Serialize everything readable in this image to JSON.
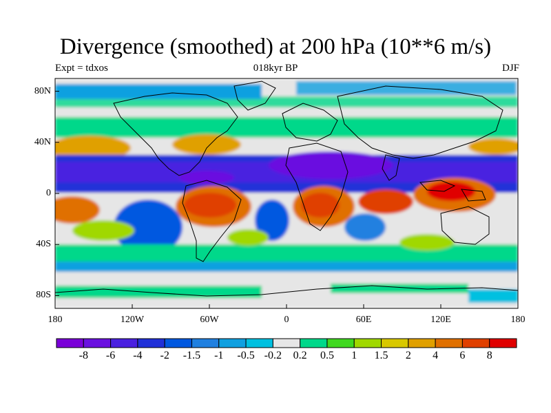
{
  "header": {
    "title": "Divergence (smoothed) at 200 hPa (10**6 m/s)",
    "left": "Expt = tdxos",
    "center": "018kyr BP",
    "right": "DJF"
  },
  "map": {
    "projection": "cylindrical equidistant",
    "lon_range": [
      -180,
      180
    ],
    "lat_range": [
      -90,
      90
    ],
    "lat_ticks": [
      {
        "value": 80,
        "label": "80N"
      },
      {
        "value": 40,
        "label": "40N"
      },
      {
        "value": 0,
        "label": "0"
      },
      {
        "value": -40,
        "label": "40S"
      },
      {
        "value": -80,
        "label": "80S"
      }
    ],
    "lon_ticks": [
      {
        "value": -180,
        "label": "180"
      },
      {
        "value": -120,
        "label": "120W"
      },
      {
        "value": -60,
        "label": "60W"
      },
      {
        "value": 0,
        "label": "0"
      },
      {
        "value": 60,
        "label": "60E"
      },
      {
        "value": 120,
        "label": "120E"
      },
      {
        "value": 180,
        "label": "180"
      }
    ]
  },
  "colorbar": {
    "colors": [
      "#7a00d8",
      "#6a10e0",
      "#4a20e0",
      "#2030d8",
      "#0058e0",
      "#2080e0",
      "#10a0e0",
      "#00c0e0",
      "#e6e6e6",
      "#00d88a",
      "#40d820",
      "#a0d800",
      "#d8c800",
      "#e0a000",
      "#e07000",
      "#e04000",
      "#e00000"
    ],
    "labels": [
      "-8",
      "-6",
      "-4",
      "-2",
      "-1.5",
      "-1",
      "-0.5",
      "-0.2",
      "0.2",
      "0.5",
      "1",
      "1.5",
      "2",
      "4",
      "6",
      "8"
    ]
  }
}
